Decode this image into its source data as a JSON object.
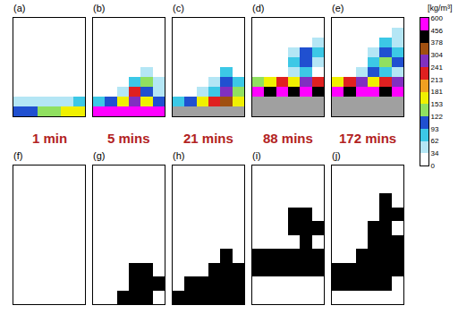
{
  "chart_data": {
    "type": "heatmap",
    "times": [
      "1 min",
      "5 mins",
      "21 mins",
      "88 mins",
      "172 mins"
    ],
    "density_panels": [
      {
        "label": "(a)",
        "cells": [
          [
            0,
            0,
            0,
            0,
            0,
            0
          ],
          [
            0,
            0,
            0,
            0,
            0,
            0
          ],
          [
            0,
            0,
            0,
            0,
            0,
            0
          ],
          [
            0,
            0,
            0,
            0,
            0,
            0
          ],
          [
            0,
            0,
            0,
            0,
            0,
            0
          ],
          [
            0,
            0,
            0,
            0,
            0,
            0
          ],
          [
            0,
            0,
            0,
            0,
            0,
            0
          ],
          [
            0,
            0,
            0,
            0,
            0,
            0
          ],
          [
            34,
            34,
            34,
            34,
            34,
            62
          ],
          [
            93,
            93,
            122,
            122,
            153,
            153
          ]
        ]
      },
      {
        "label": "(b)",
        "cells": [
          [
            0,
            0,
            0,
            0,
            0,
            0
          ],
          [
            0,
            0,
            0,
            0,
            0,
            0
          ],
          [
            0,
            0,
            0,
            0,
            0,
            0
          ],
          [
            0,
            0,
            0,
            0,
            0,
            0
          ],
          [
            0,
            0,
            0,
            0,
            0,
            0
          ],
          [
            0,
            0,
            0,
            0,
            34,
            0
          ],
          [
            0,
            0,
            0,
            62,
            122,
            34
          ],
          [
            0,
            0,
            34,
            213,
            93,
            34
          ],
          [
            62,
            93,
            153,
            241,
            181,
            93
          ],
          [
            500,
            500,
            500,
            500,
            500,
            500
          ]
        ]
      },
      {
        "label": "(c)",
        "cells": [
          [
            0,
            0,
            0,
            0,
            0,
            0
          ],
          [
            0,
            0,
            0,
            0,
            0,
            0
          ],
          [
            0,
            0,
            0,
            0,
            0,
            0
          ],
          [
            0,
            0,
            0,
            0,
            0,
            0
          ],
          [
            0,
            0,
            0,
            0,
            0,
            0
          ],
          [
            0,
            0,
            0,
            0,
            62,
            0
          ],
          [
            0,
            0,
            0,
            34,
            93,
            62
          ],
          [
            0,
            0,
            34,
            62,
            241,
            122
          ],
          [
            62,
            93,
            153,
            213,
            304,
            181
          ],
          [
            null,
            null,
            null,
            null,
            null,
            null
          ]
        ]
      },
      {
        "label": "(d)",
        "cells": [
          [
            0,
            0,
            0,
            0,
            0,
            0
          ],
          [
            0,
            0,
            0,
            0,
            0,
            0
          ],
          [
            0,
            0,
            0,
            0,
            0,
            34
          ],
          [
            0,
            0,
            0,
            34,
            93,
            62
          ],
          [
            0,
            0,
            0,
            62,
            93,
            34
          ],
          [
            0,
            0,
            0,
            34,
            62,
            0
          ],
          [
            122,
            181,
            213,
            181,
            241,
            213
          ],
          [
            500,
            400,
            500,
            400,
            500,
            400
          ],
          [
            null,
            null,
            null,
            null,
            null,
            null
          ],
          [
            null,
            null,
            null,
            null,
            null,
            null
          ]
        ]
      },
      {
        "label": "(e)",
        "cells": [
          [
            0,
            0,
            0,
            0,
            0,
            0
          ],
          [
            0,
            0,
            0,
            0,
            0,
            34
          ],
          [
            0,
            0,
            0,
            0,
            62,
            34
          ],
          [
            0,
            0,
            0,
            34,
            93,
            62
          ],
          [
            0,
            0,
            0,
            62,
            122,
            93
          ],
          [
            0,
            0,
            34,
            93,
            62,
            34
          ],
          [
            153,
            213,
            241,
            181,
            213,
            241
          ],
          [
            500,
            400,
            500,
            500,
            400,
            500
          ],
          [
            null,
            null,
            null,
            null,
            null,
            null
          ],
          [
            null,
            null,
            null,
            null,
            null,
            null
          ]
        ]
      }
    ],
    "binary_panels": {
      "colors": [
        "#ffffff",
        "#000000"
      ],
      "panels": [
        {
          "label": "(f)",
          "cells": [
            [
              0,
              0,
              0,
              0,
              0,
              0
            ],
            [
              0,
              0,
              0,
              0,
              0,
              0
            ],
            [
              0,
              0,
              0,
              0,
              0,
              0
            ],
            [
              0,
              0,
              0,
              0,
              0,
              0
            ],
            [
              0,
              0,
              0,
              0,
              0,
              0
            ],
            [
              0,
              0,
              0,
              0,
              0,
              0
            ],
            [
              0,
              0,
              0,
              0,
              0,
              0
            ],
            [
              0,
              0,
              0,
              0,
              0,
              0
            ],
            [
              0,
              0,
              0,
              0,
              0,
              0
            ],
            [
              0,
              0,
              0,
              0,
              0,
              0
            ]
          ]
        },
        {
          "label": "(g)",
          "cells": [
            [
              0,
              0,
              0,
              0,
              0,
              0
            ],
            [
              0,
              0,
              0,
              0,
              0,
              0
            ],
            [
              0,
              0,
              0,
              0,
              0,
              0
            ],
            [
              0,
              0,
              0,
              0,
              0,
              0
            ],
            [
              0,
              0,
              0,
              0,
              0,
              0
            ],
            [
              0,
              0,
              0,
              0,
              0,
              0
            ],
            [
              0,
              0,
              0,
              0,
              0,
              0
            ],
            [
              0,
              0,
              0,
              1,
              1,
              0
            ],
            [
              0,
              0,
              0,
              1,
              1,
              1
            ],
            [
              0,
              0,
              1,
              1,
              1,
              0
            ]
          ]
        },
        {
          "label": "(h)",
          "cells": [
            [
              0,
              0,
              0,
              0,
              0,
              0
            ],
            [
              0,
              0,
              0,
              0,
              0,
              0
            ],
            [
              0,
              0,
              0,
              0,
              0,
              0
            ],
            [
              0,
              0,
              0,
              0,
              0,
              0
            ],
            [
              0,
              0,
              0,
              0,
              0,
              0
            ],
            [
              0,
              0,
              0,
              0,
              0,
              0
            ],
            [
              0,
              0,
              0,
              0,
              1,
              0
            ],
            [
              0,
              0,
              0,
              1,
              1,
              1
            ],
            [
              0,
              1,
              1,
              1,
              1,
              1
            ],
            [
              1,
              1,
              1,
              1,
              1,
              1
            ]
          ]
        },
        {
          "label": "(i)",
          "cells": [
            [
              0,
              0,
              0,
              0,
              0,
              0
            ],
            [
              0,
              0,
              0,
              0,
              0,
              0
            ],
            [
              0,
              0,
              0,
              0,
              0,
              0
            ],
            [
              0,
              0,
              0,
              1,
              1,
              0
            ],
            [
              0,
              0,
              0,
              1,
              1,
              1
            ],
            [
              0,
              0,
              0,
              0,
              1,
              0
            ],
            [
              1,
              1,
              1,
              1,
              1,
              1
            ],
            [
              1,
              1,
              1,
              1,
              1,
              1
            ],
            [
              0,
              0,
              0,
              0,
              0,
              0
            ],
            [
              0,
              0,
              0,
              0,
              0,
              0
            ]
          ]
        },
        {
          "label": "(j)",
          "cells": [
            [
              0,
              0,
              0,
              0,
              0,
              0
            ],
            [
              0,
              0,
              0,
              0,
              0,
              0
            ],
            [
              0,
              0,
              0,
              0,
              1,
              0
            ],
            [
              0,
              0,
              0,
              0,
              1,
              1
            ],
            [
              0,
              0,
              0,
              1,
              1,
              0
            ],
            [
              0,
              0,
              0,
              1,
              1,
              1
            ],
            [
              0,
              0,
              1,
              1,
              1,
              1
            ],
            [
              1,
              1,
              1,
              1,
              1,
              1
            ],
            [
              1,
              1,
              1,
              1,
              1,
              0
            ],
            [
              0,
              0,
              0,
              0,
              0,
              0
            ]
          ]
        }
      ]
    },
    "colorbar": {
      "title": "[kg/m³]",
      "ticks": [
        0,
        34,
        62,
        93,
        122,
        153,
        181,
        213,
        241,
        304,
        378,
        456,
        600
      ],
      "colors": [
        "#ffffff",
        "#b4e6f5",
        "#3cc8e6",
        "#2050d0",
        "#90e060",
        "#f0f000",
        "#f0a020",
        "#e02020",
        "#8030c0",
        "#a05010",
        "#000000",
        "#ff00ff"
      ]
    }
  }
}
